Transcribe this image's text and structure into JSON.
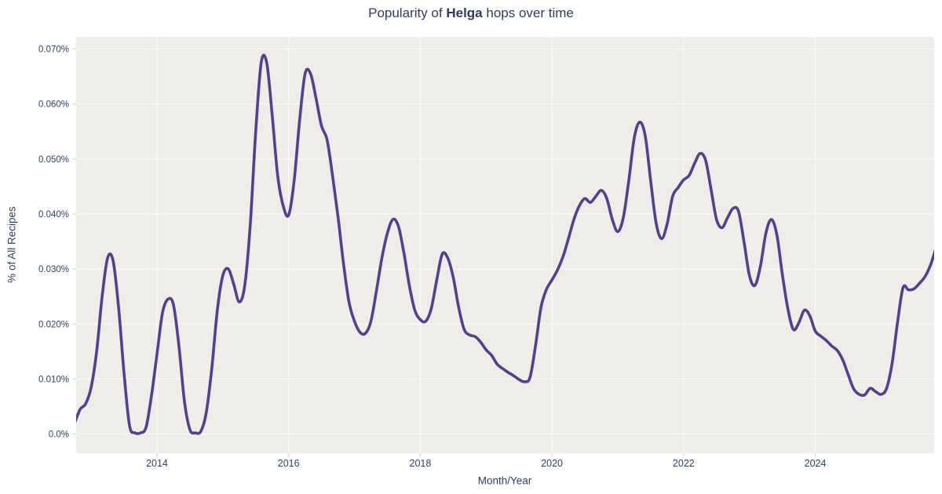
{
  "title": {
    "prefix": "Popularity of ",
    "emphasis": "Helga",
    "suffix": " hops over time"
  },
  "chart_data": {
    "type": "line",
    "title": "Popularity of Helga hops over time",
    "xlabel": "Month/Year",
    "ylabel": "% of All Recipes",
    "legend_position": "none",
    "grid": true,
    "x_range": [
      2012.772,
      2025.806
    ],
    "y_range": [
      -0.0035,
      0.0722
    ],
    "x_ticks": {
      "values": [
        2014,
        2016,
        2018,
        2020,
        2022,
        2024
      ],
      "labels": [
        "2014",
        "2016",
        "2018",
        "2020",
        "2022",
        "2024"
      ]
    },
    "y_ticks": {
      "values": [
        0,
        0.01,
        0.02,
        0.03,
        0.04,
        0.05,
        0.06,
        0.07
      ],
      "labels": [
        "0.0%",
        "0.010%",
        "0.020%",
        "0.030%",
        "0.040%",
        "0.050%",
        "0.060%",
        "0.070%"
      ]
    },
    "colors": {
      "line": "#53418c",
      "plot_bg": "#eeedea",
      "grid": "#fbfaf8",
      "tick": "#d9d7d4",
      "text": "#2f4160"
    },
    "series": [
      {
        "name": "Helga",
        "unit": "% of all recipes",
        "points": [
          [
            "2012-10",
            0.002
          ],
          [
            "2012-11",
            0.0045
          ],
          [
            "2012-12",
            0.0055
          ],
          [
            "2013-01",
            0.0085
          ],
          [
            "2013-02",
            0.015
          ],
          [
            "2013-03",
            0.025
          ],
          [
            "2013-04",
            0.032
          ],
          [
            "2013-05",
            0.0315
          ],
          [
            "2013-06",
            0.023
          ],
          [
            "2013-07",
            0.011
          ],
          [
            "2013-08",
            0.0015
          ],
          [
            "2013-09",
            0.0002
          ],
          [
            "2013-10",
            0.0002
          ],
          [
            "2013-11",
            0.0012
          ],
          [
            "2013-12",
            0.007
          ],
          [
            "2014-01",
            0.0145
          ],
          [
            "2014-02",
            0.022
          ],
          [
            "2014-03",
            0.0245
          ],
          [
            "2014-04",
            0.0235
          ],
          [
            "2014-05",
            0.016
          ],
          [
            "2014-06",
            0.006
          ],
          [
            "2014-07",
            0.0008
          ],
          [
            "2014-08",
            0.0002
          ],
          [
            "2014-09",
            0.0005
          ],
          [
            "2014-10",
            0.004
          ],
          [
            "2014-11",
            0.012
          ],
          [
            "2014-12",
            0.0225
          ],
          [
            "2015-01",
            0.0288
          ],
          [
            "2015-02",
            0.03
          ],
          [
            "2015-03",
            0.0272
          ],
          [
            "2015-04",
            0.024
          ],
          [
            "2015-05",
            0.027
          ],
          [
            "2015-06",
            0.038
          ],
          [
            "2015-07",
            0.055
          ],
          [
            "2015-08",
            0.0675
          ],
          [
            "2015-09",
            0.0675
          ],
          [
            "2015-10",
            0.058
          ],
          [
            "2015-11",
            0.047
          ],
          [
            "2015-12",
            0.0415
          ],
          [
            "2016-01",
            0.0398
          ],
          [
            "2016-02",
            0.046
          ],
          [
            "2016-03",
            0.057
          ],
          [
            "2016-04",
            0.0655
          ],
          [
            "2016-05",
            0.0655
          ],
          [
            "2016-06",
            0.061
          ],
          [
            "2016-07",
            0.056
          ],
          [
            "2016-08",
            0.0535
          ],
          [
            "2016-09",
            0.047
          ],
          [
            "2016-10",
            0.0395
          ],
          [
            "2016-11",
            0.031
          ],
          [
            "2016-12",
            0.024
          ],
          [
            "2017-01",
            0.0205
          ],
          [
            "2017-02",
            0.0185
          ],
          [
            "2017-03",
            0.0183
          ],
          [
            "2017-04",
            0.0205
          ],
          [
            "2017-05",
            0.026
          ],
          [
            "2017-06",
            0.032
          ],
          [
            "2017-07",
            0.0365
          ],
          [
            "2017-08",
            0.039
          ],
          [
            "2017-09",
            0.0378
          ],
          [
            "2017-10",
            0.033
          ],
          [
            "2017-11",
            0.027
          ],
          [
            "2017-12",
            0.0225
          ],
          [
            "2018-01",
            0.0208
          ],
          [
            "2018-02",
            0.0205
          ],
          [
            "2018-03",
            0.0228
          ],
          [
            "2018-04",
            0.028
          ],
          [
            "2018-05",
            0.0327
          ],
          [
            "2018-06",
            0.032
          ],
          [
            "2018-07",
            0.0285
          ],
          [
            "2018-08",
            0.023
          ],
          [
            "2018-09",
            0.019
          ],
          [
            "2018-10",
            0.018
          ],
          [
            "2018-11",
            0.0177
          ],
          [
            "2018-12",
            0.0167
          ],
          [
            "2019-01",
            0.0153
          ],
          [
            "2019-02",
            0.0143
          ],
          [
            "2019-03",
            0.0127
          ],
          [
            "2019-04",
            0.0119
          ],
          [
            "2019-05",
            0.0112
          ],
          [
            "2019-06",
            0.0106
          ],
          [
            "2019-07",
            0.0099
          ],
          [
            "2019-08",
            0.0095
          ],
          [
            "2019-09",
            0.0103
          ],
          [
            "2019-10",
            0.016
          ],
          [
            "2019-11",
            0.023
          ],
          [
            "2019-12",
            0.0263
          ],
          [
            "2020-01",
            0.028
          ],
          [
            "2020-02",
            0.0298
          ],
          [
            "2020-03",
            0.0322
          ],
          [
            "2020-04",
            0.0355
          ],
          [
            "2020-05",
            0.039
          ],
          [
            "2020-06",
            0.0415
          ],
          [
            "2020-07",
            0.0428
          ],
          [
            "2020-08",
            0.0421
          ],
          [
            "2020-09",
            0.0432
          ],
          [
            "2020-10",
            0.0443
          ],
          [
            "2020-11",
            0.0428
          ],
          [
            "2020-12",
            0.039
          ],
          [
            "2021-01",
            0.0368
          ],
          [
            "2021-02",
            0.0393
          ],
          [
            "2021-03",
            0.046
          ],
          [
            "2021-04",
            0.0538
          ],
          [
            "2021-05",
            0.0567
          ],
          [
            "2021-06",
            0.0542
          ],
          [
            "2021-07",
            0.046
          ],
          [
            "2021-08",
            0.0383
          ],
          [
            "2021-09",
            0.0355
          ],
          [
            "2021-10",
            0.0382
          ],
          [
            "2021-11",
            0.0432
          ],
          [
            "2021-12",
            0.0448
          ],
          [
            "2022-01",
            0.0462
          ],
          [
            "2022-02",
            0.047
          ],
          [
            "2022-03",
            0.0492
          ],
          [
            "2022-04",
            0.051
          ],
          [
            "2022-05",
            0.0498
          ],
          [
            "2022-06",
            0.0445
          ],
          [
            "2022-07",
            0.039
          ],
          [
            "2022-08",
            0.0375
          ],
          [
            "2022-09",
            0.0393
          ],
          [
            "2022-10",
            0.041
          ],
          [
            "2022-11",
            0.0405
          ],
          [
            "2022-12",
            0.035
          ],
          [
            "2023-01",
            0.0288
          ],
          [
            "2023-02",
            0.027
          ],
          [
            "2023-03",
            0.0305
          ],
          [
            "2023-04",
            0.0365
          ],
          [
            "2023-05",
            0.039
          ],
          [
            "2023-06",
            0.0362
          ],
          [
            "2023-07",
            0.029
          ],
          [
            "2023-08",
            0.0228
          ],
          [
            "2023-09",
            0.019
          ],
          [
            "2023-10",
            0.0202
          ],
          [
            "2023-11",
            0.0225
          ],
          [
            "2023-12",
            0.0215
          ],
          [
            "2024-01",
            0.0187
          ],
          [
            "2024-02",
            0.0178
          ],
          [
            "2024-03",
            0.017
          ],
          [
            "2024-04",
            0.016
          ],
          [
            "2024-05",
            0.0152
          ],
          [
            "2024-06",
            0.0135
          ],
          [
            "2024-07",
            0.0108
          ],
          [
            "2024-08",
            0.0082
          ],
          [
            "2024-09",
            0.0072
          ],
          [
            "2024-10",
            0.0071
          ],
          [
            "2024-11",
            0.0083
          ],
          [
            "2024-12",
            0.0077
          ],
          [
            "2025-01",
            0.0072
          ],
          [
            "2025-02",
            0.0083
          ],
          [
            "2025-03",
            0.0128
          ],
          [
            "2025-04",
            0.0203
          ],
          [
            "2025-05",
            0.0266
          ],
          [
            "2025-06",
            0.0262
          ],
          [
            "2025-07",
            0.0264
          ],
          [
            "2025-08",
            0.0274
          ],
          [
            "2025-09",
            0.0286
          ],
          [
            "2025-10",
            0.0307
          ],
          [
            "2025-11",
            0.0338
          ]
        ]
      }
    ]
  }
}
